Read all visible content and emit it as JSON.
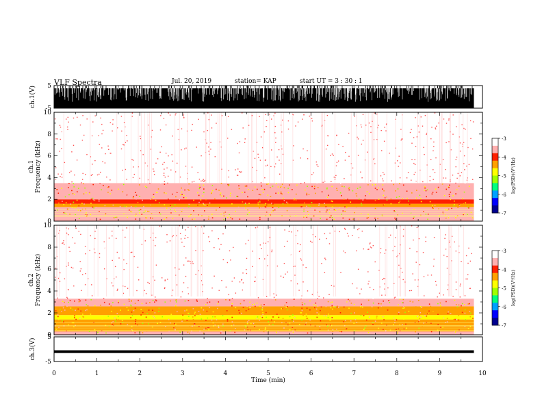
{
  "header": {
    "title": "VLF Spectra",
    "date": "Jul. 20, 2019",
    "station": "station= KAP",
    "start": "start UT = 3 : 30 : 1"
  },
  "colors": {
    "spectrogram_scale": [
      "#000090",
      "#0000ff",
      "#00a0ff",
      "#00ff80",
      "#a0ff00",
      "#ffff00",
      "#ffa000",
      "#ff2000",
      "#ffb0b0",
      "#ffffff"
    ],
    "waveform": "#000000",
    "axis": "#000000"
  },
  "chart_data": [
    {
      "type": "line",
      "panel": "ch1-waveform",
      "ylabel": "ch.1(V)",
      "ylim": [
        -5,
        5
      ],
      "yticks": [
        "5",
        "-5"
      ],
      "xlim": [
        0,
        10
      ],
      "note_values": "dense waveform nearly saturating the full range with sparse gaps"
    },
    {
      "type": "heatmap",
      "panel": "ch1-spectrogram",
      "ylabel": "ch.1 Frequency (kHz)",
      "ylim": [
        0,
        10
      ],
      "yticks": [
        "0",
        "2",
        "4",
        "6",
        "8",
        "10"
      ],
      "xlim": [
        0,
        9.8
      ],
      "bands_khz_level": [
        {
          "from": 0.0,
          "to": 0.3,
          "level": -3.6
        },
        {
          "from": 0.3,
          "to": 0.9,
          "level": -3.7
        },
        {
          "from": 0.9,
          "to": 1.3,
          "level": -3.7
        },
        {
          "from": 1.3,
          "to": 1.6,
          "level": -4.5
        },
        {
          "from": 1.6,
          "to": 2.0,
          "level": -3.9
        },
        {
          "from": 2.0,
          "to": 3.5,
          "level": -3.6
        },
        {
          "from": 3.5,
          "to": 10.0,
          "level": -3.2
        }
      ],
      "colorbar": {
        "label": "log(PSD)(V²/Hz)",
        "ticks": [
          "-3",
          "-4",
          "-5",
          "-6",
          "-7"
        ],
        "range": [
          -7,
          -3
        ]
      }
    },
    {
      "type": "heatmap",
      "panel": "ch2-spectrogram",
      "ylabel": "ch.2 Frequency (kHz)",
      "ylim": [
        0,
        10
      ],
      "yticks": [
        "0",
        "2",
        "4",
        "6",
        "8",
        "10"
      ],
      "xlim": [
        0,
        9.8
      ],
      "bands_khz_level": [
        {
          "from": 0.0,
          "to": 0.3,
          "level": -3.6
        },
        {
          "from": 0.3,
          "to": 0.8,
          "level": -4.4
        },
        {
          "from": 0.8,
          "to": 1.4,
          "level": -4.6
        },
        {
          "from": 1.4,
          "to": 1.8,
          "level": -4.8
        },
        {
          "from": 1.8,
          "to": 2.6,
          "level": -4.5
        },
        {
          "from": 2.6,
          "to": 3.3,
          "level": -3.8
        },
        {
          "from": 3.3,
          "to": 10.0,
          "level": -3.2
        }
      ],
      "colorbar": {
        "label": "log(PSD)(V²/Hz)",
        "ticks": [
          "-3",
          "-4",
          "-5",
          "-6",
          "-7"
        ],
        "range": [
          -7,
          -3
        ]
      }
    },
    {
      "type": "line",
      "panel": "ch3-waveform",
      "ylabel": "ch.3(V)",
      "ylim": [
        -5,
        5
      ],
      "yticks": [
        "5",
        "-5"
      ],
      "xlim": [
        0,
        10
      ],
      "level_value": -1.0
    }
  ],
  "xaxis": {
    "label": "Time (min)",
    "ticks": [
      "0",
      "1",
      "2",
      "3",
      "4",
      "5",
      "6",
      "7",
      "8",
      "9",
      "10"
    ],
    "range": [
      0,
      10
    ]
  }
}
